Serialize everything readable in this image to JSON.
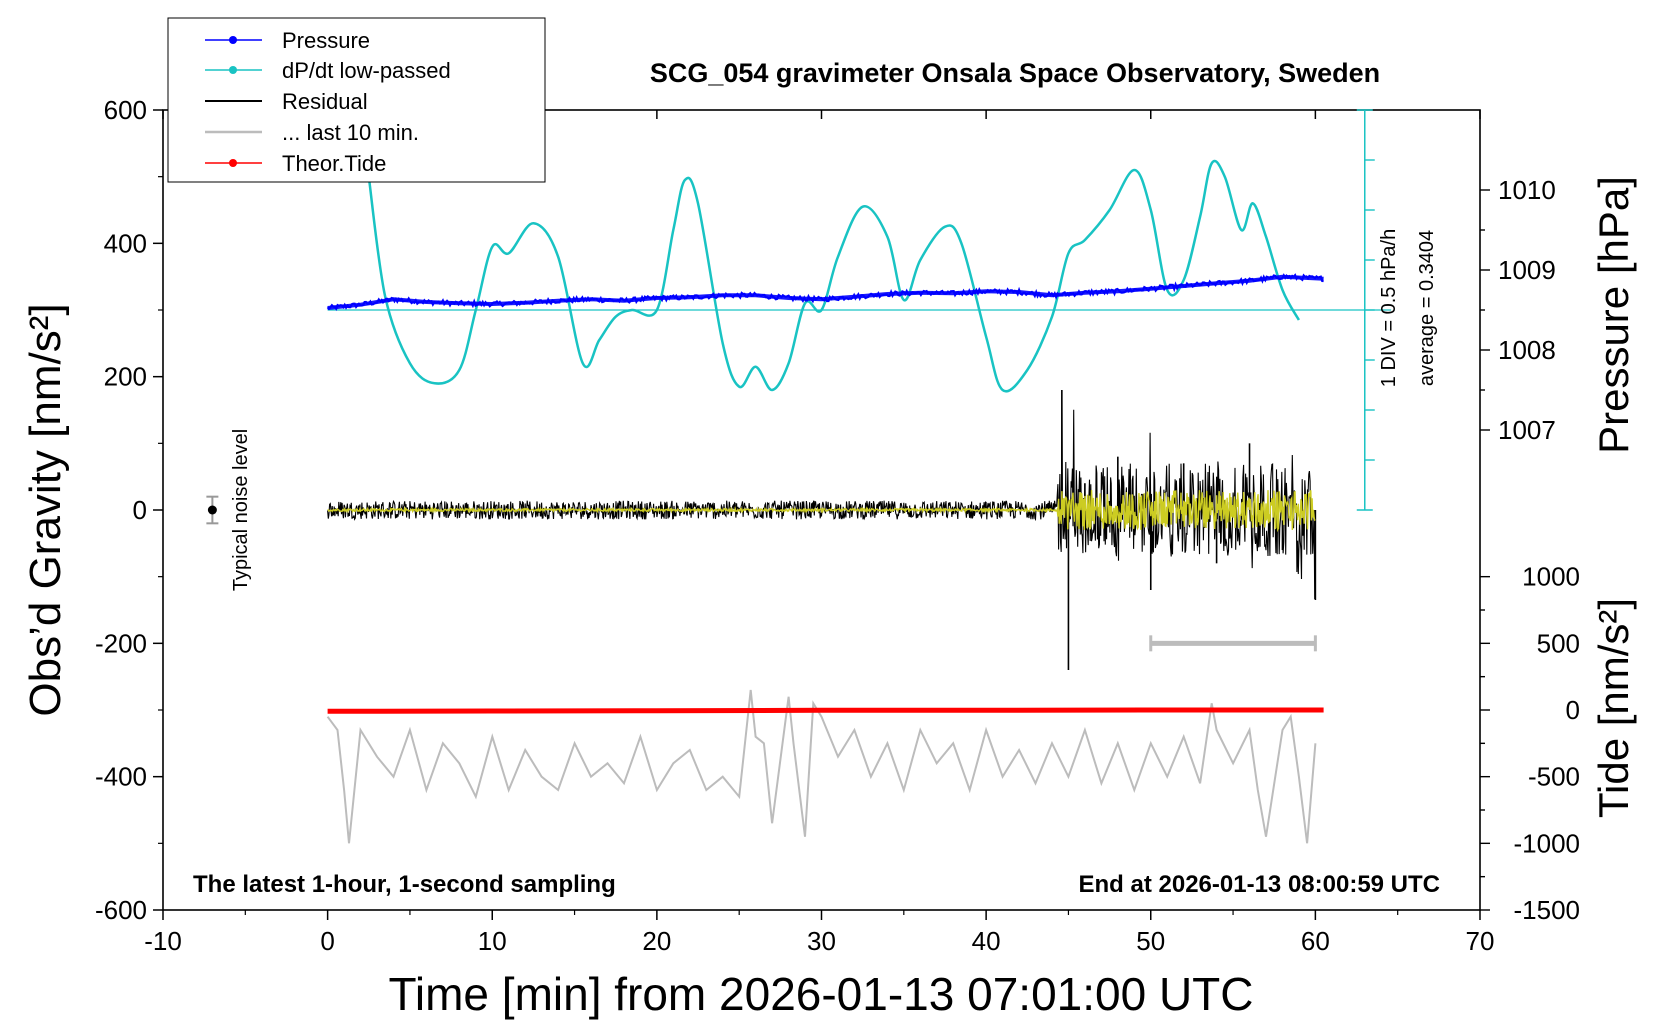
{
  "chart_data": {
    "type": "line",
    "title": "SCG_054 gravimeter Onsala Space Observatory, Sweden",
    "xlabel": "Time [min] from 2026-01-13 07:01:00 UTC",
    "ylabel_left": "Obs’d Gravity [nm/s²]",
    "ylabel_pressure": "Pressure [hPa]",
    "ylabel_tide": "Tide [nm/s²]",
    "xlim": [
      -10,
      70
    ],
    "ylim": [
      -600,
      600
    ],
    "x_ticks": [
      -10,
      0,
      10,
      20,
      30,
      40,
      50,
      60,
      70
    ],
    "x_tick_labels": [
      "-10",
      "0",
      "10",
      "20",
      "30",
      "40",
      "50",
      "60",
      "70"
    ],
    "y_ticks": [
      -600,
      -400,
      -200,
      0,
      200,
      400,
      600
    ],
    "y_tick_labels": [
      "-600",
      "-400",
      "-200",
      "0",
      "200",
      "400",
      "600"
    ],
    "pressure_axis": {
      "mapping": {
        "hpa": [
          1008.5,
          1009.5
        ],
        "gravity": [
          300,
          420
        ]
      },
      "ticks": [
        1007,
        1008,
        1009,
        1010
      ],
      "tick_labels": [
        "1007",
        "1008",
        "1009",
        "1010"
      ]
    },
    "tide_axis": {
      "mapping": {
        "nm_s2": [
          0,
          500
        ],
        "gravity": [
          -300,
          -200
        ]
      },
      "ticks": [
        -1500,
        -1000,
        -500,
        0,
        500,
        1000
      ],
      "tick_labels": [
        "-1500",
        "-1000",
        "-500",
        "0",
        "500",
        "1000"
      ]
    },
    "dpdt_scale": {
      "label_div": "1 DIV = 0.5 hPa/h",
      "label_average": "average = 0.3404",
      "x": 63,
      "baseline": 300,
      "divisions": 8
    },
    "annotations": {
      "bottom_left": "The latest 1-hour, 1-second sampling",
      "bottom_right": "End at 2026-01-13 08:00:59 UTC",
      "noise_label": "Typical noise level",
      "noise_x": -7,
      "noise_value": 0,
      "noise_halfwidth": 20,
      "last10_range": [
        50,
        60
      ],
      "last10_level": -200
    },
    "legend": {
      "placement": "top-left",
      "entries": [
        "Pressure",
        "dP/dt low-passed",
        "Residual",
        "... last 10 min.",
        "Theor.Tide"
      ]
    },
    "series": [
      {
        "name": "Pressure",
        "color": "#0000ff",
        "x": [
          0,
          2,
          4,
          6,
          8,
          10,
          12,
          14,
          16,
          18,
          20,
          22,
          24,
          26,
          28,
          30,
          32,
          34,
          36,
          38,
          40,
          42,
          44,
          46,
          48,
          50,
          52,
          54,
          56,
          58,
          60.5
        ],
        "y": [
          303,
          308,
          316,
          312,
          310,
          309,
          311,
          314,
          316,
          314,
          318,
          319,
          322,
          322,
          318,
          316,
          320,
          324,
          326,
          325,
          328,
          327,
          322,
          326,
          328,
          332,
          336,
          340,
          344,
          350,
          347
        ]
      },
      {
        "name": "dP/dt low-passed",
        "color": "#19c3c3",
        "x": [
          2.5,
          3.5,
          5,
          6.5,
          8,
          9,
          10,
          11,
          12.5,
          14,
          15.5,
          16.5,
          17.5,
          18.5,
          20,
          21,
          21.7,
          22.5,
          24,
          25,
          26,
          27,
          28,
          29,
          30,
          31,
          32.5,
          34,
          35,
          36,
          37.5,
          38.5,
          40,
          41,
          42.5,
          44,
          45,
          46,
          47.5,
          49,
          50,
          51,
          52,
          53,
          53.7,
          54.5,
          55.5,
          56.2,
          57,
          58,
          59
        ],
        "y": [
          500,
          320,
          220,
          190,
          210,
          300,
          395,
          385,
          430,
          380,
          220,
          255,
          290,
          300,
          300,
          420,
          495,
          460,
          250,
          185,
          215,
          180,
          220,
          310,
          300,
          380,
          455,
          410,
          315,
          375,
          425,
          400,
          260,
          180,
          210,
          290,
          385,
          405,
          450,
          510,
          450,
          330,
          345,
          440,
          520,
          500,
          420,
          460,
          410,
          330,
          285
        ]
      },
      {
        "name": "Residual",
        "color": "#000000",
        "x": [
          0,
          4,
          8,
          12,
          16,
          20,
          24,
          28,
          32,
          36,
          40,
          44,
          44.6,
          45,
          46,
          48,
          50,
          52,
          54,
          56,
          58,
          60
        ],
        "y": [
          0,
          0,
          0,
          0,
          0,
          0,
          0,
          0,
          0,
          0,
          0,
          0,
          180,
          -240,
          40,
          80,
          -120,
          70,
          -80,
          100,
          -60,
          -135
        ]
      },
      {
        "name": "... last 10 min.",
        "color": "#bcbcbc",
        "x": [
          0,
          0.6,
          1,
          1.3,
          2,
          3,
          4,
          5,
          6,
          7,
          8,
          9,
          10,
          11,
          12,
          13,
          14,
          15,
          16,
          17,
          18,
          19,
          20,
          21,
          22,
          23,
          24,
          25,
          25.7,
          26,
          26.5,
          27,
          28,
          28.3,
          29,
          29.5,
          30,
          31,
          32,
          33,
          34,
          35,
          36,
          37,
          38,
          39,
          40,
          41,
          42,
          43,
          44,
          45,
          46,
          47,
          48,
          49,
          50,
          51,
          52,
          53,
          53.7,
          54,
          55,
          56,
          56.5,
          57,
          58,
          58.5,
          59,
          59.5,
          60
        ],
        "y": [
          -310,
          -330,
          -420,
          -500,
          -330,
          -370,
          -400,
          -330,
          -420,
          -350,
          -380,
          -430,
          -340,
          -420,
          -360,
          -400,
          -420,
          -350,
          -400,
          -380,
          -410,
          -340,
          -420,
          -380,
          -360,
          -420,
          -400,
          -430,
          -270,
          -340,
          -350,
          -470,
          -280,
          -350,
          -490,
          -290,
          -310,
          -370,
          -330,
          -400,
          -350,
          -420,
          -330,
          -380,
          -350,
          -420,
          -330,
          -400,
          -360,
          -410,
          -350,
          -400,
          -330,
          -410,
          -350,
          -420,
          -350,
          -400,
          -340,
          -410,
          -290,
          -330,
          -380,
          -330,
          -420,
          -490,
          -330,
          -310,
          -400,
          -500,
          -350
        ]
      },
      {
        "name": "Theor.Tide",
        "color": "#ff0000",
        "x": [
          0,
          10,
          20,
          30,
          40,
          50,
          60.5
        ],
        "y": [
          -302,
          -301.5,
          -301,
          -300.5,
          -300.5,
          -300,
          -300
        ]
      }
    ]
  }
}
